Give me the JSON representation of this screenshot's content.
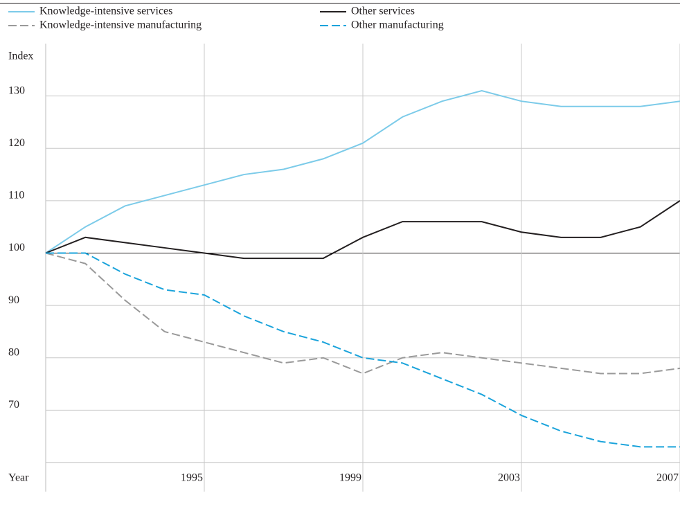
{
  "chart_data": {
    "type": "line",
    "x": [
      1991,
      1992,
      1993,
      1994,
      1995,
      1996,
      1997,
      1998,
      1999,
      2000,
      2001,
      2002,
      2003,
      2004,
      2005,
      2006,
      2007
    ],
    "series": [
      {
        "name": "Knowledge-intensive services",
        "color": "#7ccbe9",
        "dashed": false,
        "values": [
          100,
          105,
          109,
          111,
          113,
          115,
          116,
          118,
          121,
          126,
          129,
          131,
          129,
          128,
          128,
          128,
          129
        ]
      },
      {
        "name": "Knowledge-intensive manufacturing",
        "color": "#999999",
        "dashed": true,
        "values": [
          100,
          98,
          91,
          85,
          83,
          81,
          79,
          80,
          77,
          80,
          81,
          80,
          79,
          78,
          77,
          77,
          78
        ]
      },
      {
        "name": "Other services",
        "color": "#231f20",
        "dashed": false,
        "values": [
          100,
          103,
          102,
          101,
          100,
          99,
          99,
          99,
          103,
          106,
          106,
          106,
          104,
          103,
          103,
          105,
          110
        ]
      },
      {
        "name": "Other manufacturing",
        "color": "#1aa3db",
        "dashed": true,
        "values": [
          100,
          100,
          96,
          93,
          92,
          88,
          85,
          83,
          80,
          79,
          76,
          73,
          69,
          66,
          64,
          63,
          63
        ]
      }
    ],
    "ylabel": "Index",
    "xlabel": "Year",
    "xlim": [
      1991,
      2007
    ],
    "xticks": [
      1995,
      1999,
      2003,
      2007
    ],
    "ylim": [
      60,
      140
    ],
    "yticks": [
      70,
      80,
      90,
      100,
      110,
      120,
      130
    ],
    "baseline": 100,
    "grid": true,
    "legend": "top"
  }
}
